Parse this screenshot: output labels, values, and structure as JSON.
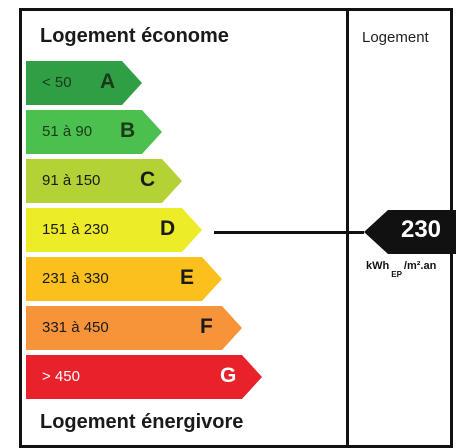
{
  "title_top": "Logement économe",
  "title_bottom": "Logement énergivore",
  "column_header": "Logement",
  "classes": [
    {
      "range": "< 50",
      "letter": "A",
      "color": "#2f9e44",
      "text_color": "#1a3a1a"
    },
    {
      "range": "51 à 90",
      "letter": "B",
      "color": "#4cc04f",
      "text_color": "#1a3a1a"
    },
    {
      "range": "91 à 150",
      "letter": "C",
      "color": "#b2d235",
      "text_color": "#1a1a1a"
    },
    {
      "range": "151 à 230",
      "letter": "D",
      "color": "#ecec28",
      "text_color": "#1a1a1a"
    },
    {
      "range": "231 à 330",
      "letter": "E",
      "color": "#fbbf1e",
      "text_color": "#1a1a1a"
    },
    {
      "range": "331 à 450",
      "letter": "F",
      "color": "#f7943a",
      "text_color": "#1a1a1a"
    },
    {
      "range": "> 450",
      "letter": "G",
      "color": "#e8212b",
      "text_color": "#ffffff"
    }
  ],
  "marker": {
    "value": "230",
    "class": "D",
    "unit_main": "kWh",
    "unit_sub": "EP",
    "unit_tail": "/m².an"
  }
}
